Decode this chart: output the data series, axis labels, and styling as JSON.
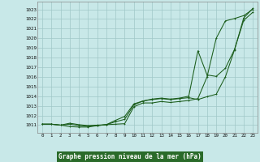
{
  "title": "Graphe pression niveau de la mer (hPa)",
  "background_color": "#c8e8e8",
  "grid_color": "#a0c8c8",
  "line_color": "#1a5c1a",
  "title_bg": "#2a6b2a",
  "title_fg": "#ffffff",
  "xlim": [
    -0.5,
    23.5
  ],
  "ylim": [
    1010.2,
    1023.8
  ],
  "yticks": [
    1011,
    1012,
    1013,
    1014,
    1015,
    1016,
    1017,
    1018,
    1019,
    1020,
    1021,
    1022,
    1023
  ],
  "xticks": [
    0,
    1,
    2,
    3,
    4,
    5,
    6,
    7,
    8,
    9,
    10,
    11,
    12,
    13,
    14,
    15,
    16,
    17,
    18,
    19,
    20,
    21,
    22,
    23
  ],
  "series1_x": [
    0,
    1,
    2,
    3,
    4,
    5,
    6,
    7,
    8,
    9,
    10,
    11,
    12,
    13,
    14,
    15,
    16,
    17,
    18,
    19,
    20,
    21,
    22,
    23
  ],
  "series1_y": [
    1011.1,
    1011.1,
    1011.0,
    1011.2,
    1011.05,
    1010.95,
    1011.0,
    1011.05,
    1011.1,
    1011.15,
    1012.9,
    1013.3,
    1013.3,
    1013.45,
    1013.35,
    1013.45,
    1013.55,
    1013.75,
    1016.0,
    1020.0,
    1021.8,
    1022.05,
    1022.35,
    1023.0
  ],
  "series2_x": [
    0,
    1,
    2,
    3,
    4,
    5,
    6,
    7,
    8,
    9,
    10,
    11,
    12,
    13,
    14,
    15,
    16,
    17,
    18,
    19,
    20,
    21,
    22,
    23
  ],
  "series2_y": [
    1011.1,
    1011.1,
    1011.0,
    1010.85,
    1010.8,
    1010.8,
    1010.95,
    1011.05,
    1011.35,
    1011.6,
    1013.1,
    1013.5,
    1013.65,
    1013.75,
    1013.65,
    1013.75,
    1013.85,
    1013.65,
    1013.95,
    1014.2,
    1016.0,
    1018.8,
    1022.1,
    1023.1
  ],
  "series3_x": [
    0,
    1,
    2,
    3,
    4,
    5,
    6,
    7,
    8,
    9,
    10,
    11,
    12,
    13,
    14,
    15,
    16,
    17,
    18,
    19,
    20,
    21,
    22,
    23
  ],
  "series3_y": [
    1011.1,
    1011.1,
    1011.0,
    1011.1,
    1010.95,
    1010.9,
    1010.95,
    1011.05,
    1011.5,
    1011.9,
    1013.2,
    1013.5,
    1013.7,
    1013.8,
    1013.7,
    1013.8,
    1014.0,
    1018.7,
    1016.2,
    1016.05,
    1016.9,
    1018.85,
    1021.85,
    1022.7
  ]
}
